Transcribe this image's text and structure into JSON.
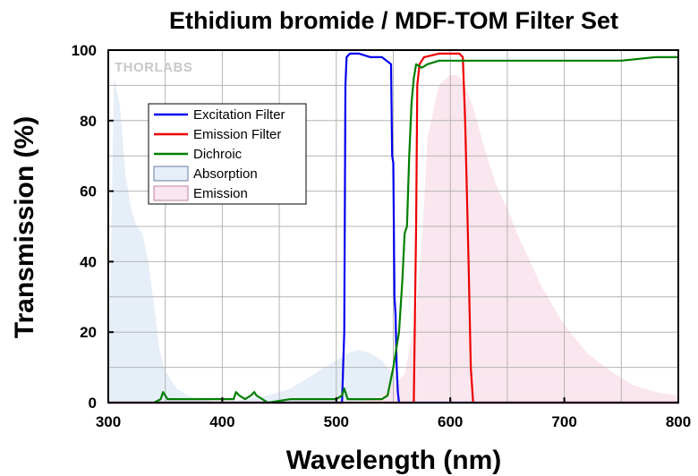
{
  "chart_data": {
    "type": "area",
    "title": "Ethidium bromide / MDF-TOM Filter Set",
    "xlabel": "Wavelength (nm)",
    "ylabel": "Transmission (%)",
    "xlim": [
      300,
      800
    ],
    "ylim": [
      0,
      100
    ],
    "x_ticks": [
      300,
      400,
      500,
      600,
      700,
      800
    ],
    "y_ticks": [
      0,
      20,
      40,
      60,
      80,
      100
    ],
    "grid": true,
    "legend_position": "upper-left",
    "watermark": "THORLABS",
    "series": [
      {
        "name": "Excitation Filter",
        "kind": "line",
        "color": "#0000ee",
        "x": [
          300,
          505,
          507,
          508,
          509,
          512,
          520,
          530,
          540,
          548,
          549,
          550,
          551,
          552,
          553,
          554,
          555,
          800
        ],
        "y": [
          0,
          0,
          20,
          90,
          98,
          99,
          99,
          98,
          98,
          96,
          70,
          68,
          30,
          25,
          10,
          3,
          0,
          0
        ]
      },
      {
        "name": "Emission Filter",
        "kind": "line",
        "color": "#ee0000",
        "x": [
          300,
          568,
          570,
          571,
          573,
          577,
          590,
          600,
          608,
          611,
          613,
          616,
          618,
          620,
          800
        ],
        "y": [
          0,
          0,
          50,
          90,
          96,
          98,
          99,
          99,
          99,
          98,
          80,
          40,
          10,
          0,
          0
        ]
      },
      {
        "name": "Dichroic",
        "kind": "line",
        "color": "#008000",
        "x": [
          340,
          346,
          348,
          350,
          352,
          360,
          370,
          380,
          400,
          410,
          412,
          415,
          420,
          425,
          428,
          430,
          440,
          460,
          480,
          500,
          505,
          507,
          510,
          520,
          530,
          540,
          545,
          550,
          555,
          558,
          560,
          562,
          564,
          566,
          568,
          570,
          575,
          580,
          590,
          600,
          620,
          650,
          680,
          700,
          720,
          750,
          780,
          800
        ],
        "y": [
          0,
          1,
          3,
          2,
          1,
          1,
          1,
          1,
          1,
          1,
          3,
          2,
          1,
          2,
          3,
          2,
          0,
          1,
          1,
          1,
          2,
          4,
          1,
          1,
          1,
          1,
          2,
          10,
          20,
          35,
          48,
          50,
          70,
          85,
          92,
          96,
          95,
          96,
          97,
          97,
          97,
          97,
          97,
          97,
          97,
          97,
          98,
          98
        ]
      },
      {
        "name": "Absorption",
        "kind": "area",
        "color": "#e6eef8",
        "stroke": "#6a7fa0",
        "x": [
          300,
          305,
          310,
          315,
          320,
          325,
          330,
          335,
          340,
          345,
          350,
          360,
          370,
          380,
          400,
          420,
          440,
          460,
          480,
          500,
          510,
          520,
          530,
          540,
          550,
          560,
          570,
          580,
          590,
          600
        ],
        "y": [
          0,
          92,
          85,
          65,
          55,
          50,
          48,
          40,
          28,
          15,
          9,
          4,
          2,
          1,
          0,
          1,
          2,
          4,
          8,
          12,
          14,
          15,
          14,
          12,
          8,
          5,
          3,
          2,
          1,
          0
        ]
      },
      {
        "name": "Emission",
        "kind": "area",
        "color": "#fae6ee",
        "stroke": "#c080a0",
        "x": [
          520,
          540,
          560,
          570,
          575,
          580,
          590,
          600,
          605,
          610,
          620,
          630,
          640,
          650,
          660,
          680,
          700,
          720,
          740,
          760,
          780,
          800
        ],
        "y": [
          0,
          2,
          8,
          25,
          45,
          75,
          90,
          93,
          93,
          92,
          84,
          72,
          62,
          55,
          47,
          33,
          22,
          14,
          9,
          5,
          3,
          2
        ]
      }
    ]
  }
}
